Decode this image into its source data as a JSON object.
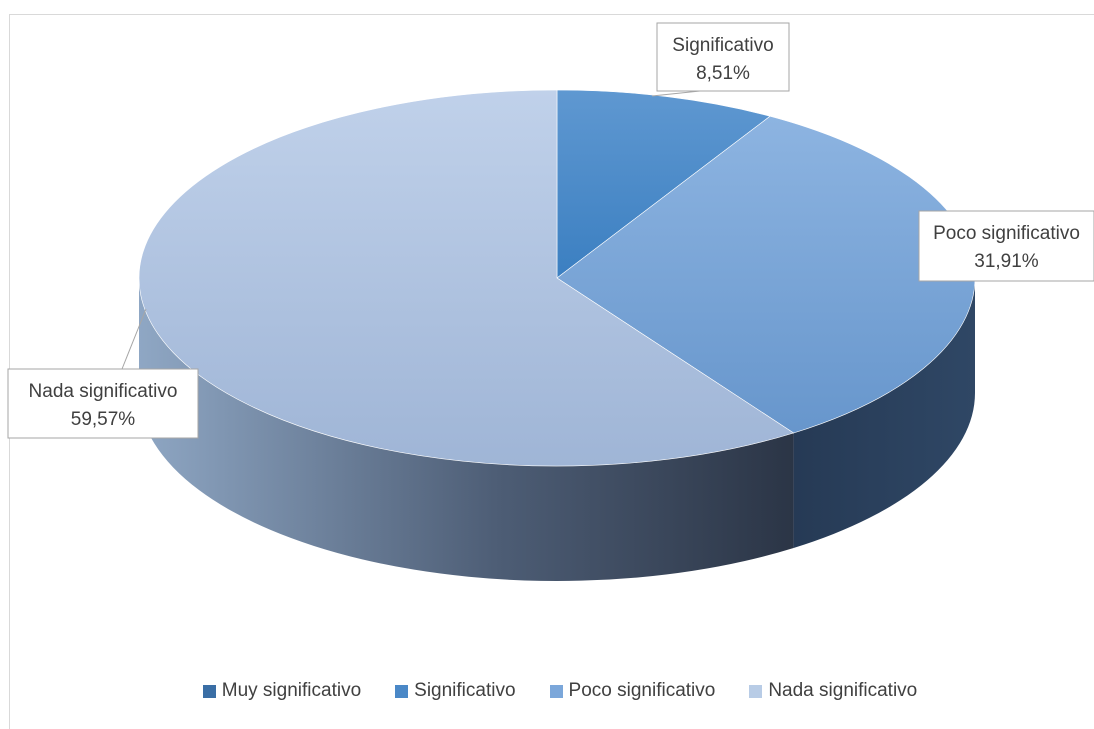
{
  "chart_data": {
    "type": "pie",
    "categories": [
      "Muy significativo",
      "Significativo",
      "Poco significativo",
      "Nada significativo"
    ],
    "values": [
      0,
      8.51,
      31.91,
      59.57
    ],
    "data_labels": [
      {
        "name": "Significativo",
        "value": "8,51%"
      },
      {
        "name": "Poco significativo",
        "value": "31,91%"
      },
      {
        "name": "Nada significativo",
        "value": "59,57%"
      }
    ],
    "legend_position": "bottom",
    "style": "3d",
    "colors": [
      "#3a6ea5",
      "#4a88c7",
      "#7ba7da",
      "#b8cce6"
    ]
  }
}
